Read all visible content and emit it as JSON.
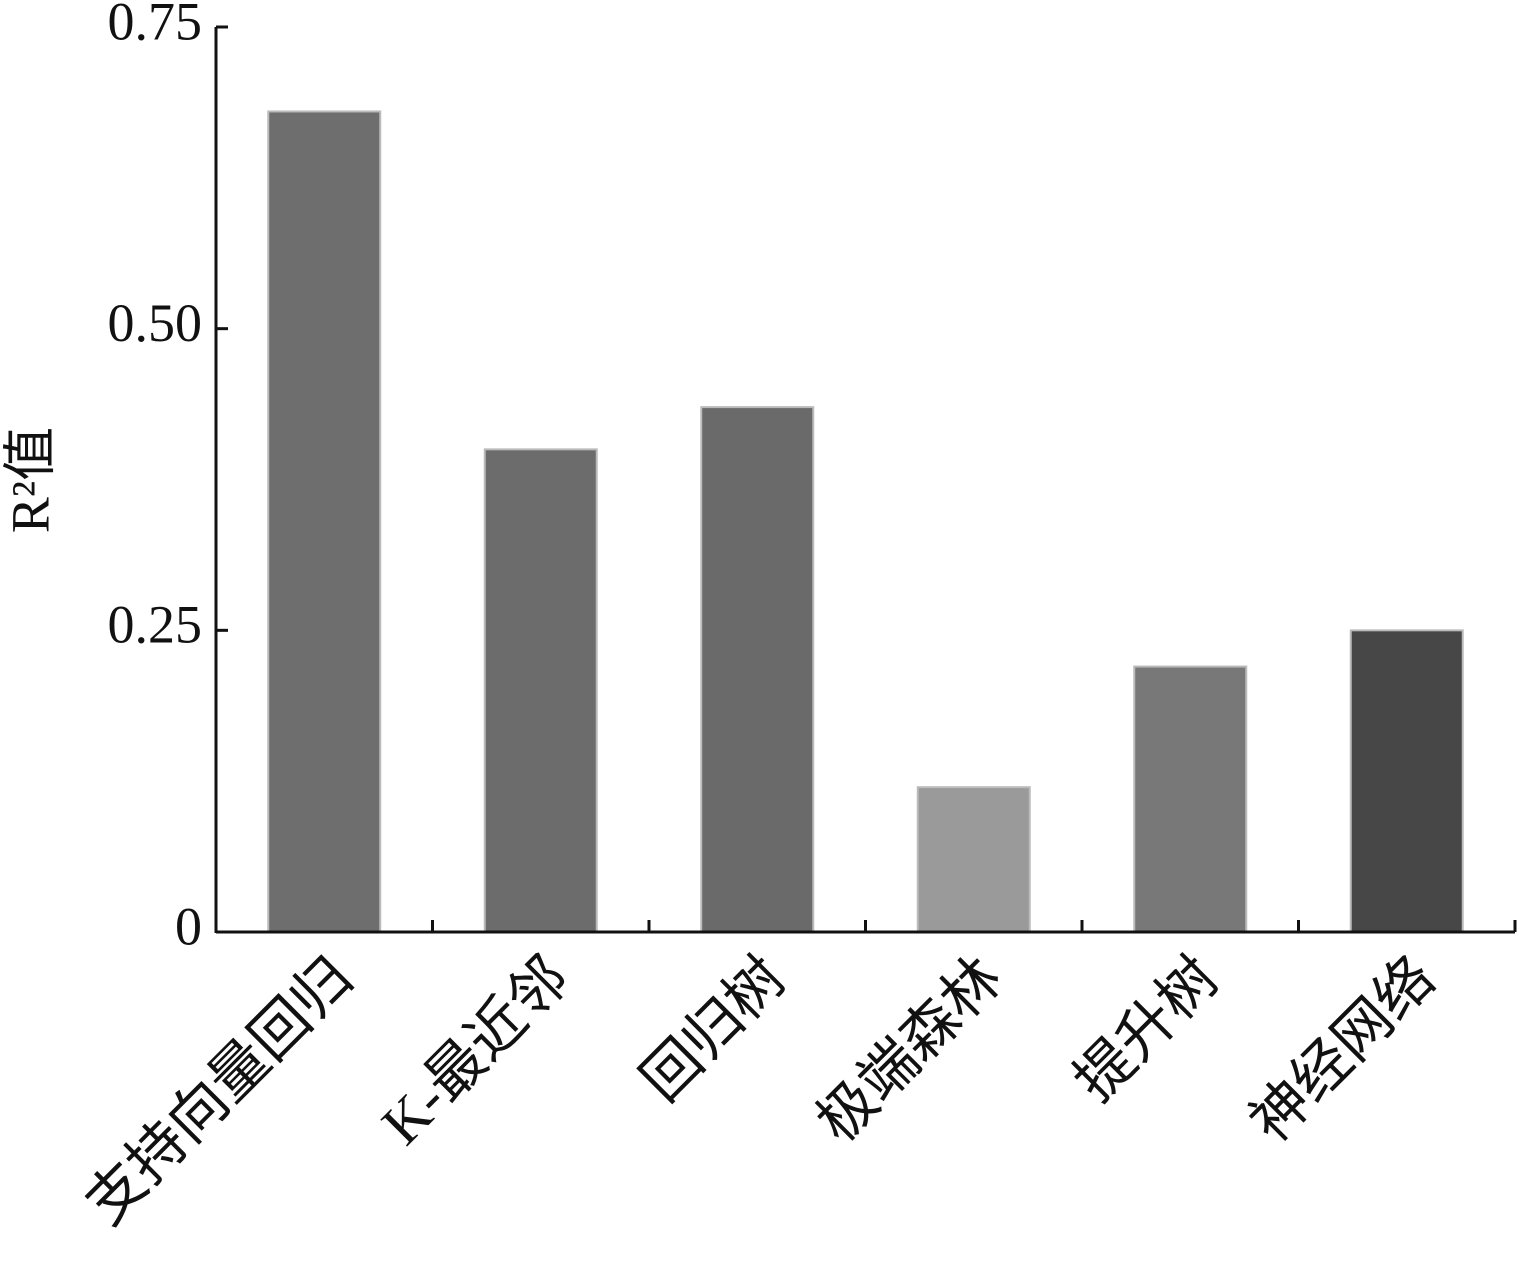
{
  "chart_data": {
    "type": "bar",
    "ylabel": "R²值",
    "categories": [
      "支持向量回归",
      "K-最近邻",
      "回归树",
      "极端森林",
      "提升树",
      "神经网络"
    ],
    "values": [
      0.68,
      0.4,
      0.435,
      0.12,
      0.22,
      0.25
    ],
    "colors": [
      "#6e6e6e",
      "#6c6c6c",
      "#6a6a6a",
      "#9a9a9a",
      "#787878",
      "#474747"
    ],
    "ylim": [
      0,
      0.75
    ],
    "yticks": [
      0,
      0.25,
      {
        "value": 0.5,
        "label": "0.50"
      },
      0.75
    ]
  }
}
